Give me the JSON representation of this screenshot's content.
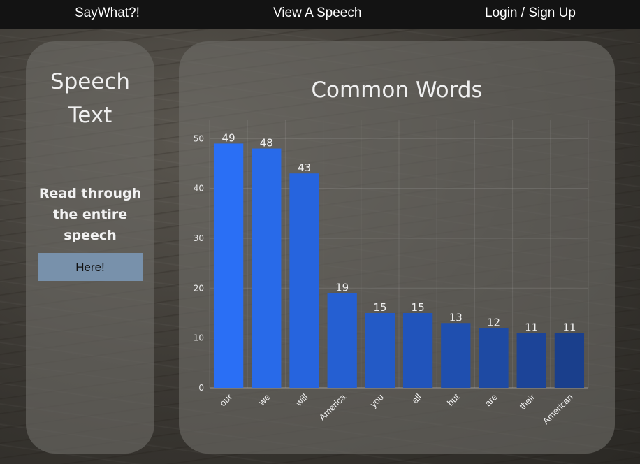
{
  "nav": {
    "brand": "SayWhat?!",
    "view_speech": "View A Speech",
    "login": "Login / Sign Up"
  },
  "sidebar": {
    "title_line1": "Speech",
    "title_line2": "Text",
    "desc_line1": "Read through",
    "desc_line2": "the entire",
    "desc_line3": "speech",
    "button_label": "Here!"
  },
  "chart_title": "Common Words",
  "colors": {
    "nav_bg": "#131313",
    "button_bg": "#7891ab",
    "bar_start": "#2a6ff5",
    "bar_end": "#1a3f8c"
  },
  "chart_data": {
    "type": "bar",
    "title": "Common Words",
    "categories": [
      "our",
      "we",
      "will",
      "America",
      "you",
      "all",
      "but",
      "are",
      "their",
      "American"
    ],
    "values": [
      49,
      48,
      43,
      19,
      15,
      15,
      13,
      12,
      11,
      11
    ],
    "ylim": [
      0,
      52
    ],
    "yticks": [
      0,
      10,
      20,
      30,
      40,
      50
    ],
    "grid": true,
    "data_labels": true
  }
}
